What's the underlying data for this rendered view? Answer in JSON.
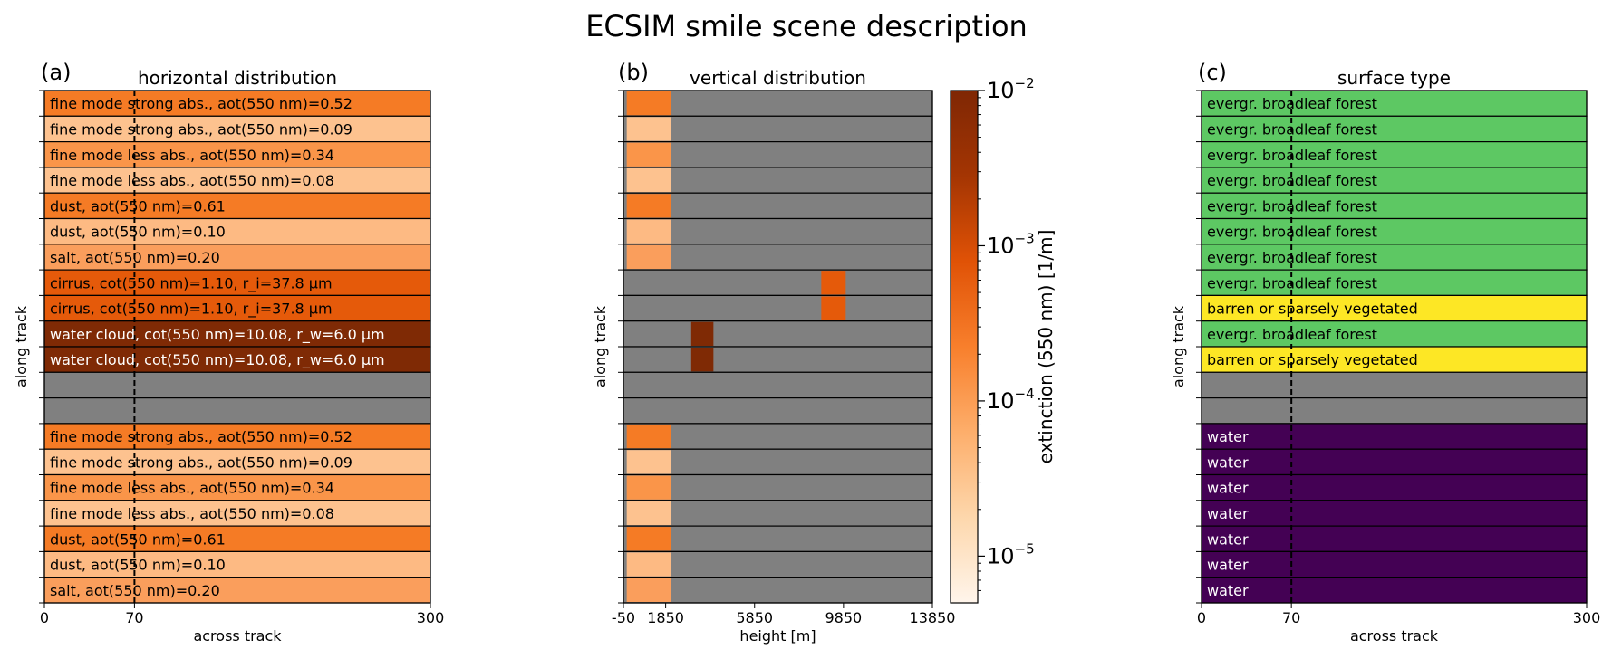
{
  "figure_title": "ECSIM smile scene description",
  "colors": {
    "empty": "#808080",
    "fine_mode_high": "#F57B25",
    "fine_mode_low": "#FDC28F",
    "dust_high": "#F57B25",
    "dust_low": "#FDBA83",
    "salt": "#FA9E5C",
    "cirrus": "#E55A0A",
    "water_cloud": "#7F2A05",
    "forest": "#5DC863",
    "barren": "#FDE725",
    "water": "#440154"
  },
  "chart_data": [
    {
      "type": "table",
      "panel_label": "(a)",
      "title": "horizontal distribution",
      "xlabel": "across track",
      "ylabel": "along track",
      "xlim": [
        0,
        300
      ],
      "xticks": [
        0,
        70,
        300
      ],
      "dashed_line_x": 70,
      "rows": [
        {
          "label": "fine mode strong abs., aot(550 nm)=0.52",
          "color": "#F57B25",
          "text_color": "#000000"
        },
        {
          "label": "fine mode strong abs., aot(550 nm)=0.09",
          "color": "#FDC28F",
          "text_color": "#000000"
        },
        {
          "label": "fine mode less abs., aot(550 nm)=0.34",
          "color": "#FA9549",
          "text_color": "#000000"
        },
        {
          "label": "fine mode less abs., aot(550 nm)=0.08",
          "color": "#FDC28F",
          "text_color": "#000000"
        },
        {
          "label": "dust, aot(550 nm)=0.61",
          "color": "#F57B25",
          "text_color": "#000000"
        },
        {
          "label": "dust, aot(550 nm)=0.10",
          "color": "#FDBA83",
          "text_color": "#000000"
        },
        {
          "label": "salt, aot(550 nm)=0.20",
          "color": "#FA9E5C",
          "text_color": "#000000"
        },
        {
          "label": "cirrus, cot(550 nm)=1.10, r_i=37.8 µm",
          "color": "#E55A0A",
          "text_color": "#000000"
        },
        {
          "label": "cirrus, cot(550 nm)=1.10, r_i=37.8 µm",
          "color": "#E55A0A",
          "text_color": "#000000"
        },
        {
          "label": "water cloud, cot(550 nm)=10.08, r_w=6.0 µm",
          "color": "#7F2A05",
          "text_color": "#ffffff"
        },
        {
          "label": "water cloud, cot(550 nm)=10.08, r_w=6.0 µm",
          "color": "#7F2A05",
          "text_color": "#ffffff"
        },
        {
          "label": "",
          "color": "#808080",
          "text_color": "#000000"
        },
        {
          "label": "",
          "color": "#808080",
          "text_color": "#000000"
        },
        {
          "label": "fine mode strong abs., aot(550 nm)=0.52",
          "color": "#F57B25",
          "text_color": "#000000"
        },
        {
          "label": "fine mode strong abs., aot(550 nm)=0.09",
          "color": "#FDC28F",
          "text_color": "#000000"
        },
        {
          "label": "fine mode less abs., aot(550 nm)=0.34",
          "color": "#FA9549",
          "text_color": "#000000"
        },
        {
          "label": "fine mode less abs., aot(550 nm)=0.08",
          "color": "#FDC28F",
          "text_color": "#000000"
        },
        {
          "label": "dust, aot(550 nm)=0.61",
          "color": "#F57B25",
          "text_color": "#000000"
        },
        {
          "label": "dust, aot(550 nm)=0.10",
          "color": "#FDBA83",
          "text_color": "#000000"
        },
        {
          "label": "salt, aot(550 nm)=0.20",
          "color": "#FA9E5C",
          "text_color": "#000000"
        }
      ]
    },
    {
      "type": "heatmap",
      "panel_label": "(b)",
      "title": "vertical distribution",
      "xlabel": "height [m]",
      "ylabel": "along track",
      "xlim": [
        -50,
        13850
      ],
      "xticks": [
        -50,
        1850,
        5850,
        9850,
        13850
      ],
      "rows": [
        {
          "segments": [
            {
              "x0": 100,
              "x1": 2100,
              "color": "#F57B25"
            }
          ]
        },
        {
          "segments": [
            {
              "x0": 100,
              "x1": 2100,
              "color": "#FDC28F"
            }
          ]
        },
        {
          "segments": [
            {
              "x0": 100,
              "x1": 2100,
              "color": "#FA9549"
            }
          ]
        },
        {
          "segments": [
            {
              "x0": 100,
              "x1": 2100,
              "color": "#FDC28F"
            }
          ]
        },
        {
          "segments": [
            {
              "x0": 100,
              "x1": 2100,
              "color": "#F57B25"
            }
          ]
        },
        {
          "segments": [
            {
              "x0": 100,
              "x1": 2100,
              "color": "#FDBA83"
            }
          ]
        },
        {
          "segments": [
            {
              "x0": 100,
              "x1": 2100,
              "color": "#FA9E5C"
            }
          ]
        },
        {
          "segments": [
            {
              "x0": 8850,
              "x1": 9950,
              "color": "#E55A0A"
            }
          ]
        },
        {
          "segments": [
            {
              "x0": 8850,
              "x1": 9950,
              "color": "#E55A0A"
            }
          ]
        },
        {
          "segments": [
            {
              "x0": 3000,
              "x1": 4000,
              "color": "#7F2A05"
            }
          ]
        },
        {
          "segments": [
            {
              "x0": 3000,
              "x1": 4000,
              "color": "#7F2A05"
            }
          ]
        },
        {
          "segments": []
        },
        {
          "segments": []
        },
        {
          "segments": [
            {
              "x0": 100,
              "x1": 2100,
              "color": "#F57B25"
            }
          ]
        },
        {
          "segments": [
            {
              "x0": 100,
              "x1": 2100,
              "color": "#FDC28F"
            }
          ]
        },
        {
          "segments": [
            {
              "x0": 100,
              "x1": 2100,
              "color": "#FA9549"
            }
          ]
        },
        {
          "segments": [
            {
              "x0": 100,
              "x1": 2100,
              "color": "#FDC28F"
            }
          ]
        },
        {
          "segments": [
            {
              "x0": 100,
              "x1": 2100,
              "color": "#F57B25"
            }
          ]
        },
        {
          "segments": [
            {
              "x0": 100,
              "x1": 2100,
              "color": "#FDBA83"
            }
          ]
        },
        {
          "segments": [
            {
              "x0": 100,
              "x1": 2100,
              "color": "#FA9E5C"
            }
          ]
        }
      ],
      "colorbar": {
        "label": "extinction (550 nm) [1/m]",
        "scale": "log",
        "range": [
          5e-06,
          0.01
        ],
        "ticks": [
          {
            "value": 0.01,
            "base": "10",
            "exp": "−2"
          },
          {
            "value": 0.001,
            "base": "10",
            "exp": "−3"
          },
          {
            "value": 0.0001,
            "base": "10",
            "exp": "−4"
          },
          {
            "value": 1e-05,
            "base": "10",
            "exp": "−5"
          }
        ],
        "gradient": [
          "#FFF5EB",
          "#FDD7AC",
          "#FDAE6B",
          "#F87F2C",
          "#E05206",
          "#A43503",
          "#7F2704"
        ]
      }
    },
    {
      "type": "table",
      "panel_label": "(c)",
      "title": "surface type",
      "xlabel": "across track",
      "ylabel": "along track",
      "xlim": [
        0,
        300
      ],
      "xticks": [
        0,
        70,
        300
      ],
      "dashed_line_x": 70,
      "rows": [
        {
          "label": "evergr. broadleaf forest",
          "color": "#5DC863",
          "text_color": "#000000"
        },
        {
          "label": "evergr. broadleaf forest",
          "color": "#5DC863",
          "text_color": "#000000"
        },
        {
          "label": "evergr. broadleaf forest",
          "color": "#5DC863",
          "text_color": "#000000"
        },
        {
          "label": "evergr. broadleaf forest",
          "color": "#5DC863",
          "text_color": "#000000"
        },
        {
          "label": "evergr. broadleaf forest",
          "color": "#5DC863",
          "text_color": "#000000"
        },
        {
          "label": "evergr. broadleaf forest",
          "color": "#5DC863",
          "text_color": "#000000"
        },
        {
          "label": "evergr. broadleaf forest",
          "color": "#5DC863",
          "text_color": "#000000"
        },
        {
          "label": "evergr. broadleaf forest",
          "color": "#5DC863",
          "text_color": "#000000"
        },
        {
          "label": "barren or sparsely vegetated",
          "color": "#FDE725",
          "text_color": "#000000"
        },
        {
          "label": "evergr. broadleaf forest",
          "color": "#5DC863",
          "text_color": "#000000"
        },
        {
          "label": "barren or sparsely vegetated",
          "color": "#FDE725",
          "text_color": "#000000"
        },
        {
          "label": "",
          "color": "#808080",
          "text_color": "#000000"
        },
        {
          "label": "",
          "color": "#808080",
          "text_color": "#000000"
        },
        {
          "label": "water",
          "color": "#440154",
          "text_color": "#ffffff"
        },
        {
          "label": "water",
          "color": "#440154",
          "text_color": "#ffffff"
        },
        {
          "label": "water",
          "color": "#440154",
          "text_color": "#ffffff"
        },
        {
          "label": "water",
          "color": "#440154",
          "text_color": "#ffffff"
        },
        {
          "label": "water",
          "color": "#440154",
          "text_color": "#ffffff"
        },
        {
          "label": "water",
          "color": "#440154",
          "text_color": "#ffffff"
        },
        {
          "label": "water",
          "color": "#440154",
          "text_color": "#ffffff"
        }
      ]
    }
  ]
}
